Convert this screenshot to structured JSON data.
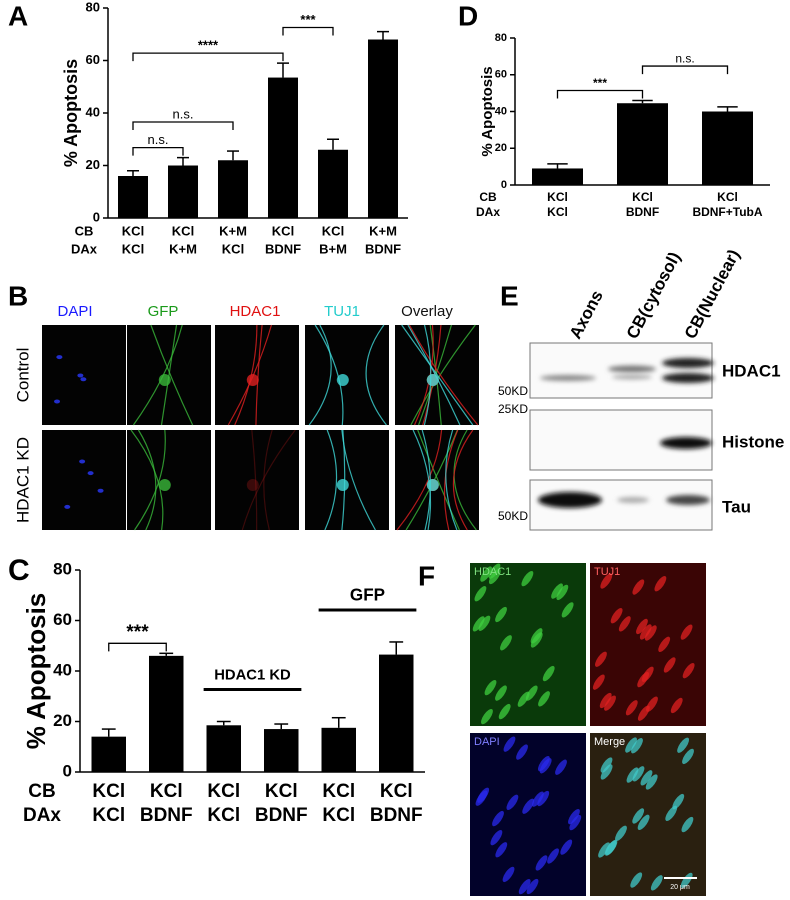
{
  "chart_data": [
    {
      "type": "bar",
      "panel": "A",
      "ylabel": "% Apoptosis",
      "row_labels": [
        "CB",
        "DAx"
      ],
      "categories": [
        [
          "KCl",
          "KCl"
        ],
        [
          "KCl",
          "K+M"
        ],
        [
          "K+M",
          "KCl"
        ],
        [
          "KCl",
          "BDNF"
        ],
        [
          "KCl",
          "B+M"
        ],
        [
          "K+M",
          "BDNF"
        ]
      ],
      "values": [
        16,
        20,
        22,
        53.5,
        26,
        68
      ],
      "errors": [
        2,
        3,
        3.5,
        5.5,
        4,
        3
      ],
      "color": "#000000",
      "ylim": [
        0,
        80
      ],
      "yticks": [
        0,
        20,
        40,
        60,
        80
      ],
      "brackets": [
        {
          "from": 0,
          "to": 1,
          "label": "n.s."
        },
        {
          "from": 0,
          "to": 2,
          "label": "n.s."
        },
        {
          "from": 0,
          "to": 3,
          "label": "****"
        },
        {
          "from": 3,
          "to": 4,
          "label": "***"
        }
      ]
    },
    {
      "type": "bar",
      "panel": "D",
      "ylabel": "% Apoptosis",
      "row_labels": [
        "CB",
        "DAx"
      ],
      "categories": [
        [
          "KCl",
          "KCl"
        ],
        [
          "KCl",
          "BDNF"
        ],
        [
          "KCl",
          "BDNF+TubA"
        ]
      ],
      "values": [
        9,
        44.5,
        40
      ],
      "errors": [
        2.5,
        1.5,
        2.5
      ],
      "color": "#000000",
      "ylim": [
        0,
        80
      ],
      "yticks": [
        0,
        20,
        40,
        60,
        80
      ],
      "brackets": [
        {
          "from": 0,
          "to": 1,
          "label": "***"
        },
        {
          "from": 1,
          "to": 2,
          "label": "n.s."
        }
      ]
    },
    {
      "type": "bar",
      "panel": "C",
      "ylabel": "% Apoptosis",
      "row_labels": [
        "CB",
        "DAx"
      ],
      "categories": [
        [
          "KCl",
          "KCl"
        ],
        [
          "KCl",
          "BDNF"
        ],
        [
          "KCl",
          "KCl"
        ],
        [
          "KCl",
          "BDNF"
        ],
        [
          "KCl",
          "KCl"
        ],
        [
          "KCl",
          "BDNF"
        ]
      ],
      "values": [
        14,
        46,
        18.5,
        17,
        17.5,
        46.5
      ],
      "errors": [
        3,
        1,
        1.5,
        2,
        4,
        5
      ],
      "color": "#000000",
      "ylim": [
        0,
        80
      ],
      "yticks": [
        0,
        20,
        40,
        60,
        80
      ],
      "brackets": [
        {
          "from": 0,
          "to": 1,
          "label": "***"
        }
      ],
      "groups": [
        {
          "from": 2,
          "to": 3,
          "label": "HDAC1 KD"
        },
        {
          "from": 4,
          "to": 5,
          "label": "GFP"
        }
      ]
    }
  ],
  "figure_b": {
    "panel": "B",
    "columns": [
      "DAPI",
      "GFP",
      "HDAC1",
      "TUJ1",
      "Overlay"
    ],
    "rows": [
      "Control",
      "HDAC1 KD"
    ]
  },
  "figure_e": {
    "panel": "E",
    "lanes": [
      "Axons",
      "CB(cytosol)",
      "CB(Nuclear)"
    ],
    "blots": [
      {
        "protein": "HDAC1",
        "marker": "50KD"
      },
      {
        "protein": "Histone",
        "marker": "25KD"
      },
      {
        "protein": "Tau",
        "marker": "50KD"
      }
    ]
  },
  "figure_f": {
    "panel": "F",
    "quadrants": [
      "HDAC1",
      "TUJ1",
      "DAPI",
      "Merge"
    ],
    "scale_bar": "20 μm"
  }
}
